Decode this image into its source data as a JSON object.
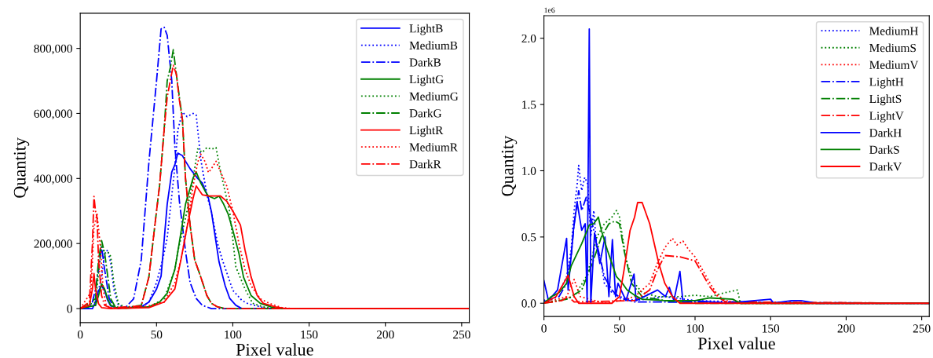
{
  "chart_data": [
    {
      "type": "line",
      "xlabel": "Pixel value",
      "ylabel": "Quantity",
      "xlim": [
        0,
        255
      ],
      "ylim": [
        -43000,
        908000
      ],
      "xticks": [
        0,
        50,
        100,
        150,
        200,
        250
      ],
      "yticks": [
        0,
        {
          "value": 200000,
          "label": "200,000"
        },
        {
          "value": 400000,
          "label": "400,000"
        },
        {
          "value": 600000,
          "label": "600,000"
        },
        {
          "value": 800000,
          "label": "800,000"
        }
      ],
      "legend": "top right",
      "grid": false,
      "series": [
        {
          "name": "LightB",
          "color": "#0000ff",
          "line_style": "solid",
          "x": [
            0,
            8,
            10,
            12,
            14,
            16,
            18,
            20,
            24,
            30,
            40,
            45,
            50,
            53,
            57,
            60,
            62,
            64,
            67,
            69,
            72,
            74,
            77,
            80,
            84,
            86,
            91,
            95,
            98,
            102,
            106,
            255
          ],
          "values": [
            0,
            0,
            20000,
            55000,
            70000,
            55000,
            25000,
            8000,
            2000,
            2000,
            5000,
            20000,
            60000,
            100000,
            321000,
            420000,
            442000,
            478000,
            470000,
            453000,
            430000,
            418000,
            400000,
            386000,
            340000,
            297000,
            143000,
            70000,
            31000,
            10000,
            0,
            0
          ]
        },
        {
          "name": "MediumB",
          "color": "#0000ff",
          "line_style": "dotted",
          "x": [
            0,
            10,
            14,
            16,
            18,
            20,
            22,
            25,
            30,
            40,
            45,
            50,
            54,
            57,
            62,
            64,
            67,
            70,
            74,
            76,
            79,
            83,
            86,
            90,
            93,
            100,
            106,
            110,
            120,
            122,
            255
          ],
          "values": [
            0,
            10000,
            100000,
            170000,
            180000,
            140000,
            60000,
            10000,
            3000,
            5000,
            20000,
            80000,
            150000,
            217000,
            435000,
            550000,
            604000,
            590000,
            600000,
            595000,
            459000,
            350000,
            297000,
            200000,
            152000,
            56000,
            25000,
            15000,
            3000,
            0,
            0
          ]
        },
        {
          "name": "DarkB",
          "color": "#0000ff",
          "line_style": "dashdot",
          "x": [
            0,
            5,
            8,
            10,
            12,
            14,
            16,
            19,
            22,
            25,
            30,
            35,
            40,
            45,
            50,
            53,
            55,
            57,
            60,
            62,
            65,
            69,
            72,
            76,
            80,
            86,
            255
          ],
          "values": [
            0,
            0,
            20000,
            60000,
            120000,
            190000,
            120000,
            30000,
            5000,
            0,
            5000,
            30000,
            150000,
            450000,
            700000,
            860000,
            865000,
            840000,
            700000,
            500000,
            330000,
            176000,
            80000,
            31000,
            10000,
            0,
            0
          ]
        },
        {
          "name": "LightG",
          "color": "#008000",
          "line_style": "solid",
          "x": [
            0,
            10,
            12,
            14,
            16,
            18,
            20,
            24,
            30,
            45,
            52,
            57,
            62,
            64,
            69,
            74,
            76,
            79,
            82,
            84,
            88,
            91,
            94,
            97,
            100,
            104,
            107,
            112,
            118,
            125,
            130,
            255
          ],
          "values": [
            0,
            10000,
            40000,
            76000,
            60000,
            30000,
            10000,
            2000,
            1000,
            5000,
            20000,
            47000,
            120000,
            176000,
            321000,
            402000,
            420000,
            386000,
            360000,
            346000,
            338000,
            346000,
            321000,
            290000,
            241000,
            170000,
            97000,
            40000,
            16000,
            5000,
            0,
            0
          ]
        },
        {
          "name": "MediumG",
          "color": "#008000",
          "line_style": "dotted",
          "x": [
            0,
            10,
            12,
            14,
            16,
            18,
            20,
            22,
            25,
            30,
            45,
            55,
            62,
            64,
            70,
            74,
            77,
            80,
            83,
            86,
            89,
            92,
            98,
            102,
            108,
            113,
            120,
            127,
            255
          ],
          "values": [
            0,
            20000,
            110000,
            195000,
            170000,
            175000,
            160000,
            80000,
            15000,
            3000,
            5000,
            30000,
            120000,
            176000,
            300000,
            400000,
            491000,
            480000,
            495000,
            490000,
            495000,
            420000,
            297000,
            128000,
            60000,
            16000,
            5000,
            0,
            0
          ]
        },
        {
          "name": "DarkG",
          "color": "#008000",
          "line_style": "dashdot",
          "x": [
            0,
            10,
            12,
            14,
            16,
            18,
            20,
            23,
            30,
            40,
            45,
            50,
            52,
            55,
            57,
            59,
            61,
            63,
            65,
            67,
            69,
            72,
            75,
            79,
            83,
            86,
            90,
            95,
            255
          ],
          "values": [
            0,
            30000,
            150000,
            209000,
            170000,
            100000,
            30000,
            5000,
            3000,
            10000,
            97000,
            300000,
            378000,
            550000,
            700000,
            740000,
            796000,
            720000,
            650000,
            580000,
            400000,
            257000,
            150000,
            97000,
            40000,
            16000,
            5000,
            0,
            0
          ]
        },
        {
          "name": "LightR",
          "color": "#ff0000",
          "line_style": "solid",
          "x": [
            0,
            6,
            8,
            9,
            10,
            12,
            14,
            20,
            45,
            55,
            62,
            66,
            70,
            74,
            76,
            80,
            84,
            88,
            92,
            96,
            100,
            105,
            108,
            112,
            116,
            120,
            128,
            135,
            255
          ],
          "values": [
            0,
            10000,
            60000,
            108000,
            60000,
            15000,
            3000,
            0,
            3000,
            20000,
            60000,
            150000,
            250000,
            340000,
            377000,
            350000,
            346000,
            346000,
            346000,
            330000,
            300000,
            257000,
            180000,
            97000,
            40000,
            16000,
            5000,
            0,
            0
          ]
        },
        {
          "name": "MediumR",
          "color": "#ff0000",
          "line_style": "dotted",
          "x": [
            0,
            7,
            9,
            11,
            13,
            15,
            17,
            20,
            40,
            55,
            62,
            66,
            70,
            74,
            77,
            79,
            82,
            84,
            86,
            89,
            92,
            96,
            100,
            104,
            108,
            112,
            118,
            124,
            132,
            138,
            255
          ],
          "values": [
            0,
            50000,
            250000,
            290000,
            200000,
            60000,
            10000,
            2000,
            3000,
            20000,
            80000,
            150000,
            250000,
            377000,
            450000,
            475000,
            450000,
            418000,
            430000,
            453000,
            420000,
            377000,
            300000,
            200000,
            120000,
            70000,
            30000,
            16000,
            3000,
            0,
            0
          ]
        },
        {
          "name": "DarkR",
          "color": "#ff0000",
          "line_style": "dashdot",
          "x": [
            0,
            6,
            8,
            9,
            10,
            11,
            12,
            14,
            16,
            20,
            40,
            45,
            50,
            52,
            55,
            57,
            59,
            61,
            63,
            65,
            67,
            69,
            72,
            75,
            79,
            83,
            86,
            90,
            95,
            255
          ],
          "values": [
            0,
            20000,
            200000,
            345000,
            300000,
            280000,
            150000,
            40000,
            10000,
            2000,
            8000,
            97000,
            300000,
            378000,
            550000,
            650000,
            700000,
            748000,
            720000,
            640000,
            580000,
            400000,
            257000,
            150000,
            97000,
            40000,
            16000,
            5000,
            0,
            0
          ]
        }
      ]
    },
    {
      "type": "line",
      "xlabel": "Pixel value",
      "ylabel": "Quantity",
      "annotations": [
        "1e6"
      ],
      "xlim": [
        0,
        255
      ],
      "ylim": [
        -0.1,
        2.17
      ],
      "xticks": [
        0,
        50,
        100,
        150,
        200,
        250
      ],
      "yticks": [
        {
          "value": 0,
          "label": "0.0"
        },
        {
          "value": 0.5,
          "label": "0.5"
        },
        {
          "value": 1,
          "label": "1.0"
        },
        {
          "value": 1.5,
          "label": "1.5"
        },
        {
          "value": 2,
          "label": "2.0"
        }
      ],
      "legend": "top right",
      "grid": false,
      "series": [
        {
          "name": "MediumH",
          "color": "#0000ff",
          "line_style": "dotted",
          "x": [
            0,
            10,
            15,
            18,
            20,
            22,
            23,
            25,
            27,
            29,
            31,
            33,
            35,
            38,
            40,
            45,
            50,
            60,
            80,
            100,
            130,
            150,
            255
          ],
          "values": [
            0.02,
            0.08,
            0.2,
            0.4,
            0.7,
            0.9,
            1.04,
            0.85,
            0.95,
            0.9,
            0.5,
            0.7,
            0.4,
            0.3,
            0.15,
            0.08,
            0.05,
            0.02,
            0.05,
            0.02,
            0.01,
            0,
            0
          ]
        },
        {
          "name": "MediumS",
          "color": "#008000",
          "line_style": "dotted",
          "x": [
            0,
            10,
            20,
            28,
            32,
            35,
            40,
            45,
            48,
            50,
            52,
            55,
            60,
            65,
            75,
            90,
            100,
            110,
            120,
            128,
            130,
            255
          ],
          "values": [
            0,
            0.02,
            0.05,
            0.2,
            0.35,
            0.5,
            0.6,
            0.65,
            0.7,
            0.65,
            0.5,
            0.3,
            0.15,
            0.08,
            0.05,
            0.05,
            0.06,
            0.05,
            0.08,
            0.1,
            0,
            0
          ]
        },
        {
          "name": "MediumV",
          "color": "#ff0000",
          "line_style": "dotted",
          "x": [
            0,
            15,
            20,
            24,
            40,
            50,
            60,
            70,
            75,
            80,
            85,
            88,
            92,
            96,
            100,
            105,
            110,
            115,
            120,
            130,
            255
          ],
          "values": [
            0,
            0.05,
            0.18,
            0.05,
            0,
            0.02,
            0.05,
            0.15,
            0.3,
            0.42,
            0.49,
            0.44,
            0.47,
            0.4,
            0.35,
            0.25,
            0.15,
            0.06,
            0.02,
            0,
            0
          ]
        },
        {
          "name": "LightH",
          "color": "#0000ff",
          "line_style": "dashdot",
          "x": [
            0,
            10,
            15,
            18,
            20,
            23,
            25,
            28,
            32,
            36,
            40,
            45,
            50,
            60,
            255
          ],
          "values": [
            0.01,
            0.05,
            0.15,
            0.35,
            0.6,
            0.85,
            0.7,
            0.8,
            0.6,
            0.4,
            0.2,
            0.1,
            0.04,
            0.01,
            0
          ]
        },
        {
          "name": "LightS",
          "color": "#008000",
          "line_style": "dashdot",
          "x": [
            0,
            15,
            25,
            32,
            38,
            43,
            47,
            50,
            53,
            58,
            65,
            80,
            100,
            255
          ],
          "values": [
            0,
            0.03,
            0.1,
            0.3,
            0.5,
            0.6,
            0.62,
            0.6,
            0.4,
            0.15,
            0.05,
            0.02,
            0,
            0
          ]
        },
        {
          "name": "LightV",
          "color": "#ff0000",
          "line_style": "dashdot",
          "x": [
            0,
            12,
            16,
            20,
            60,
            70,
            75,
            80,
            90,
            100,
            105,
            110,
            115,
            120,
            255
          ],
          "values": [
            0,
            0.02,
            0.05,
            0.01,
            0.02,
            0.1,
            0.25,
            0.36,
            0.35,
            0.32,
            0.22,
            0.12,
            0.05,
            0.01,
            0
          ]
        },
        {
          "name": "DarkH",
          "color": "#0000ff",
          "line_style": "solid",
          "x": [
            0,
            3,
            9,
            15,
            16,
            19.5,
            22,
            25,
            27.3,
            28.6,
            30,
            31,
            33.5,
            37,
            40.4,
            43,
            45.3,
            47.4,
            49,
            54.3,
            59.6,
            61,
            75.2,
            80.4,
            83,
            86,
            90,
            92,
            100,
            120,
            150,
            152,
            164,
            170,
            180,
            255
          ],
          "values": [
            0.17,
            0.02,
            0.1,
            0.49,
            0.1,
            0.55,
            0.76,
            0.55,
            0.6,
            0,
            2.07,
            0,
            0.53,
            0.3,
            0.5,
            0.05,
            0.48,
            0.05,
            0.15,
            0.02,
            0.22,
            0.02,
            0.1,
            0.05,
            0.12,
            0.02,
            0.24,
            0.01,
            0.02,
            0,
            0.03,
            0,
            0.02,
            0.02,
            0,
            0
          ]
        },
        {
          "name": "DarkS",
          "color": "#008000",
          "line_style": "solid",
          "x": [
            0,
            5,
            10,
            15,
            18,
            25,
            30,
            33,
            36,
            38,
            42,
            45,
            48,
            52,
            55,
            60,
            65,
            80,
            100,
            110,
            125,
            130,
            255
          ],
          "values": [
            0,
            0.05,
            0.08,
            0.15,
            0.28,
            0.45,
            0.59,
            0.6,
            0.65,
            0.55,
            0.4,
            0.3,
            0.2,
            0.15,
            0.1,
            0.06,
            0.03,
            0.02,
            0.02,
            0.04,
            0.03,
            0,
            0
          ]
        },
        {
          "name": "DarkV",
          "color": "#ff0000",
          "line_style": "solid",
          "x": [
            0,
            8,
            13,
            16,
            20,
            23,
            45,
            50,
            53,
            57,
            60,
            62,
            65,
            70,
            73,
            76,
            80,
            85,
            90,
            255
          ],
          "values": [
            0,
            0.05,
            0.15,
            0.21,
            0.05,
            0,
            0,
            0.05,
            0.25,
            0.55,
            0.65,
            0.76,
            0.76,
            0.6,
            0.45,
            0.3,
            0.15,
            0.05,
            0,
            0
          ]
        }
      ]
    }
  ]
}
